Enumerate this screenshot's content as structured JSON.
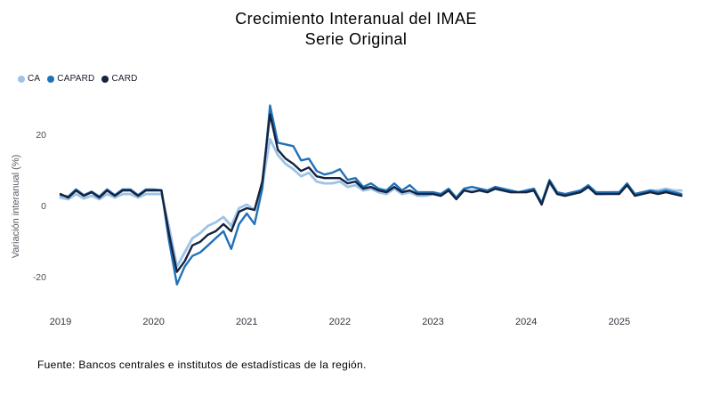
{
  "title": {
    "line1": "Crecimiento Interanual del IMAE",
    "line2": "Serie Original"
  },
  "legend": {
    "items": [
      {
        "label": "CA",
        "color": "#9DC3E6"
      },
      {
        "label": "CAPARD",
        "color": "#2071B9"
      },
      {
        "label": "CARD",
        "color": "#16233F"
      }
    ]
  },
  "y_axis": {
    "title": "Variación interanual (%)"
  },
  "footer": {
    "text": "Fuente: Bancos centrales e institutos de estadísticas de la región."
  },
  "chart_data": {
    "type": "line",
    "title": "Crecimiento Interanual del IMAE - Serie Original",
    "ylabel": "Variación interanual (%)",
    "xlabel": "",
    "frequency": "monthly",
    "x_start": "2019-01",
    "x_end": "2025-09",
    "x_tick_labels": [
      "2019",
      "2020",
      "2021",
      "2022",
      "2023",
      "2024",
      "2025"
    ],
    "y_ticks": [
      20,
      0,
      -20
    ],
    "ylim": [
      -26,
      32
    ],
    "grid": false,
    "legend_position": "top-left",
    "series": [
      {
        "name": "CA",
        "color": "#9DC3E6",
        "values": [
          2.5,
          2.0,
          3.5,
          2.2,
          3.0,
          2.0,
          3.5,
          2.5,
          3.5,
          3.5,
          2.5,
          3.5,
          3.5,
          3.5,
          -6.0,
          -17.0,
          -13.0,
          -9.0,
          -7.5,
          -5.5,
          -4.5,
          -3.0,
          -5.5,
          -0.5,
          0.5,
          -1.0,
          6.0,
          19.0,
          14.5,
          12.0,
          10.5,
          8.5,
          9.5,
          7.0,
          6.5,
          6.5,
          7.0,
          5.5,
          6.0,
          4.5,
          5.0,
          4.0,
          3.5,
          5.0,
          3.5,
          4.0,
          3.0,
          3.0,
          3.5,
          3.0,
          4.5,
          2.5,
          4.5,
          4.5,
          4.5,
          4.0,
          5.0,
          4.5,
          4.0,
          4.0,
          4.0,
          4.5,
          1.0,
          6.5,
          3.5,
          3.0,
          3.5,
          4.0,
          5.5,
          3.5,
          3.5,
          4.0,
          4.0,
          6.0,
          3.5,
          4.0,
          4.5,
          4.5,
          5.0,
          4.5,
          4.5
        ]
      },
      {
        "name": "CAPARD",
        "color": "#2071B9",
        "values": [
          3.2,
          2.8,
          4.8,
          3.2,
          4.2,
          2.8,
          4.8,
          3.2,
          4.8,
          4.8,
          3.2,
          4.8,
          4.8,
          4.6,
          -10.0,
          -22.0,
          -17.0,
          -14.0,
          -13.0,
          -11.0,
          -9.0,
          -7.0,
          -12.0,
          -5.0,
          -2.0,
          -5.0,
          5.0,
          28.5,
          18.0,
          17.5,
          17.0,
          13.0,
          13.5,
          10.0,
          9.0,
          9.5,
          10.5,
          7.5,
          8.0,
          5.5,
          6.5,
          5.0,
          4.5,
          6.5,
          4.5,
          6.0,
          4.0,
          4.0,
          4.0,
          3.5,
          5.0,
          2.5,
          5.0,
          5.5,
          5.0,
          4.5,
          5.5,
          5.0,
          4.5,
          4.0,
          4.5,
          5.0,
          1.0,
          7.5,
          4.0,
          3.5,
          4.0,
          4.5,
          6.0,
          4.0,
          4.0,
          4.0,
          4.0,
          6.5,
          3.5,
          4.0,
          4.5,
          4.0,
          4.5,
          4.0,
          3.5
        ]
      },
      {
        "name": "CARD",
        "color": "#16233F",
        "values": [
          3.5,
          2.5,
          4.5,
          3.0,
          4.0,
          2.5,
          4.5,
          3.0,
          4.5,
          4.5,
          3.0,
          4.5,
          4.5,
          4.5,
          -8.0,
          -18.5,
          -15.5,
          -11.0,
          -10.0,
          -8.0,
          -7.0,
          -5.0,
          -7.0,
          -1.5,
          -0.5,
          -1.0,
          7.0,
          26.0,
          16.0,
          13.5,
          12.0,
          10.0,
          11.0,
          8.5,
          8.0,
          8.0,
          8.0,
          6.5,
          7.0,
          5.0,
          5.5,
          4.5,
          4.0,
          5.5,
          4.0,
          4.5,
          3.5,
          3.5,
          3.5,
          3.0,
          4.5,
          2.0,
          4.5,
          4.0,
          4.5,
          4.0,
          5.0,
          4.5,
          4.0,
          4.0,
          4.0,
          4.5,
          0.5,
          7.0,
          3.5,
          3.0,
          3.5,
          4.0,
          5.5,
          3.5,
          3.5,
          3.5,
          3.5,
          6.0,
          3.0,
          3.5,
          4.0,
          3.5,
          4.0,
          3.5,
          3.0
        ]
      }
    ]
  }
}
